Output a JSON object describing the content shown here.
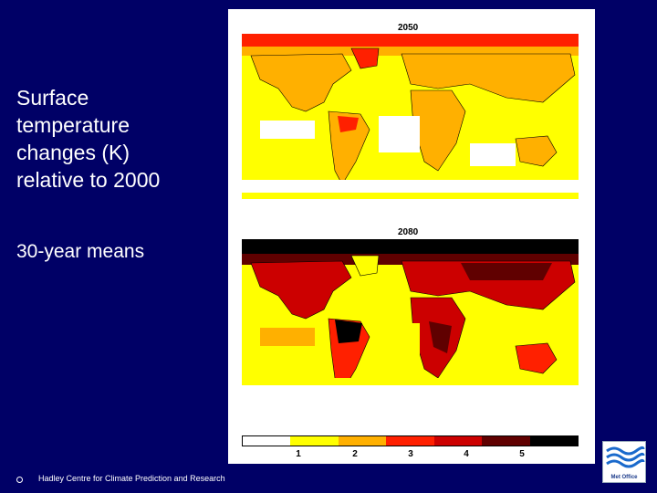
{
  "slide": {
    "title_lines": [
      "Surface",
      "temperature",
      "changes (K)",
      "relative to 2000"
    ],
    "subtitle": "30-year means",
    "footer": "Hadley Centre for Climate Prediction and Research",
    "logo_text": "Met Office"
  },
  "maps": {
    "top_label": "2050",
    "bottom_label": "2080"
  },
  "colorbar": {
    "ticks": [
      "1",
      "2",
      "3",
      "4",
      "5"
    ],
    "colors": [
      "#ffffff",
      "#ffff00",
      "#ffb000",
      "#ff2000",
      "#cc0000",
      "#600000",
      "#000000"
    ]
  },
  "colors": {
    "background": "#000066",
    "text": "#ffffff"
  }
}
